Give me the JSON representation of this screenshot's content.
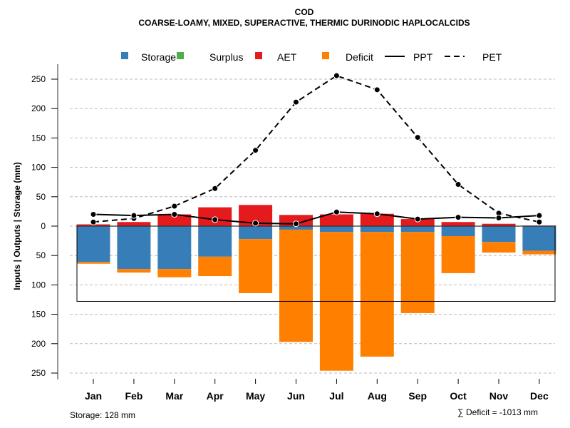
{
  "chart_data": {
    "type": "bar",
    "title": "COD",
    "subtitle": "COARSE-LOAMY, MIXED, SUPERACTIVE, THERMIC DURINODIC HAPLOCALCIDS",
    "ylabel": "Inputs | Outputs | Storage    (mm)",
    "xlabel": "",
    "categories": [
      "Jan",
      "Feb",
      "Mar",
      "Apr",
      "May",
      "Jun",
      "Jul",
      "Aug",
      "Sep",
      "Oct",
      "Nov",
      "Dec"
    ],
    "ylim": [
      -250,
      250
    ],
    "yticks": [
      250,
      200,
      150,
      100,
      50,
      0,
      50,
      100,
      150,
      200,
      250
    ],
    "ytick_values": [
      250,
      200,
      150,
      100,
      50,
      0,
      -50,
      -100,
      -150,
      -200,
      -250
    ],
    "grid": true,
    "legend_position": "top",
    "legend": [
      {
        "name": "Storage",
        "kind": "box",
        "color": "#377EB8"
      },
      {
        "name": "Surplus",
        "kind": "box",
        "color": "#4DAF4A"
      },
      {
        "name": "AET",
        "kind": "box",
        "color": "#E41A1C"
      },
      {
        "name": "Deficit",
        "kind": "box",
        "color": "#FF7F00"
      },
      {
        "name": "PPT",
        "kind": "solid-line",
        "color": "#000000"
      },
      {
        "name": "PET",
        "kind": "dashed-line",
        "color": "#000000"
      }
    ],
    "series": [
      {
        "name": "AET",
        "values": [
          3,
          7,
          20,
          32,
          36,
          19,
          20,
          21,
          12,
          7,
          4,
          1
        ],
        "color": "#E41A1C"
      },
      {
        "name": "Surplus",
        "values": [
          0,
          0,
          0,
          0,
          0,
          0,
          0,
          0,
          0,
          0,
          0,
          0
        ],
        "color": "#4DAF4A"
      },
      {
        "name": "Storage",
        "values": [
          61,
          73,
          73,
          52,
          22,
          6,
          10,
          10,
          10,
          17,
          27,
          42
        ],
        "color": "#377EB8"
      },
      {
        "name": "Deficit",
        "values": [
          3,
          6,
          14,
          33,
          92,
          191,
          236,
          212,
          138,
          63,
          18,
          6
        ],
        "color": "#FF7F00"
      },
      {
        "name": "PPT",
        "values": [
          20,
          18,
          20,
          11,
          5,
          4,
          24,
          21,
          12,
          15,
          14,
          18
        ],
        "color": "#000000"
      },
      {
        "name": "PET",
        "values": [
          7,
          13,
          34,
          64,
          129,
          211,
          256,
          232,
          151,
          71,
          22,
          7
        ],
        "color": "#000000"
      }
    ],
    "storage_capacity": 128,
    "annotations": {
      "storage": "Storage: 128 mm",
      "deficit_sum": "∑ Deficit = -1013 mm"
    }
  }
}
